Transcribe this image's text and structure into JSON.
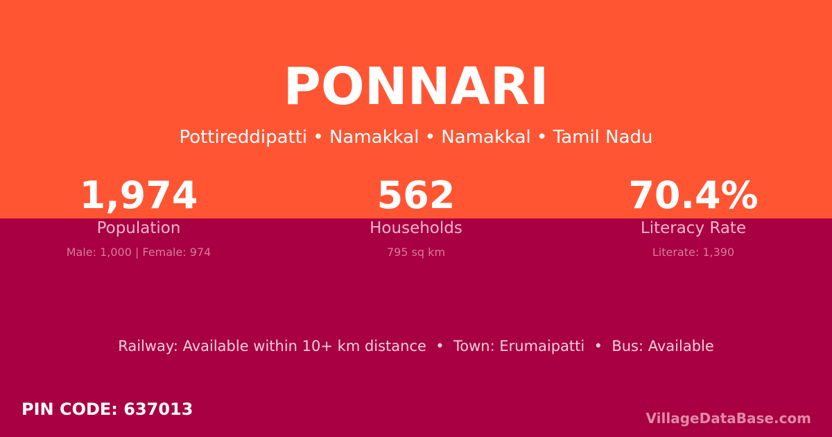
{
  "title": "PONNARI",
  "subtitle": "Pottireddipatti • Namakkal • Namakkal • Tamil Nadu",
  "stats": [
    {
      "value": "1,974",
      "label": "Population",
      "detail": "Male: 1,000 | Female: 974"
    },
    {
      "value": "562",
      "label": "Households",
      "detail": "795 sq km"
    },
    {
      "value": "70.4%",
      "label": "Literacy Rate",
      "detail": "Literate: 1,390"
    }
  ],
  "info": "Railway: Available within 10+ km distance  •  Town: Erumaipatti  •  Bus: Available",
  "pin": "PIN CODE: 637013",
  "brand": "VillageDataBase.com",
  "colors": {
    "top": "#ff5533",
    "bottom": "#a80042"
  }
}
